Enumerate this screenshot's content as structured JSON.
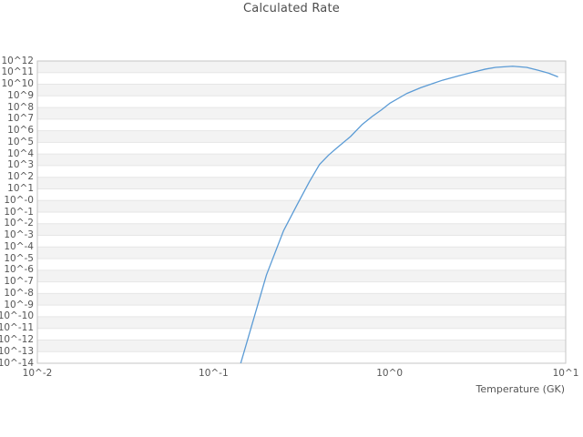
{
  "window": {
    "background": "#ffffff"
  },
  "chart_data": {
    "type": "line",
    "title": "Calculated Rate",
    "xlabel": "Temperature (GK)",
    "ylabel": "",
    "x_scale": "log10",
    "y_scale": "log10",
    "xlim_log10": [
      -2,
      1
    ],
    "ylim_log10": [
      -14,
      12
    ],
    "grid": "horizontal-bands-alternating",
    "legend": "none",
    "x_tick_labels": [
      "10^-2",
      "10^-1",
      "10^0",
      "10^1"
    ],
    "x_tick_log10": [
      -2,
      -1,
      0,
      1
    ],
    "y_tick_labels": [
      "10^12",
      "10^11",
      "10^10",
      "10^9",
      "10^8",
      "10^7",
      "10^6",
      "10^5",
      "10^4",
      "10^3",
      "10^2",
      "10^1",
      "10^-0",
      "10^-1",
      "10^-2",
      "10^-3",
      "10^-4",
      "10^-5",
      "10^-6",
      "10^-7",
      "10^-8",
      "10^-9",
      "10^-10",
      "10^-11",
      "10^-12",
      "10^-13",
      "10^-14"
    ],
    "y_tick_log10": [
      12,
      11,
      10,
      9,
      8,
      7,
      6,
      5,
      4,
      3,
      2,
      1,
      0,
      -1,
      -2,
      -3,
      -4,
      -5,
      -6,
      -7,
      -8,
      -9,
      -10,
      -11,
      -12,
      -13,
      -14
    ],
    "series": [
      {
        "name": "calculated-rate",
        "color": "#5b9bd5",
        "x_temperature_gk": [
          0.1,
          0.15,
          0.2,
          0.25,
          0.3,
          0.35,
          0.4,
          0.45,
          0.5,
          0.6,
          0.7,
          0.8,
          0.9,
          1.0,
          1.25,
          1.5,
          1.75,
          2.0,
          2.5,
          3.0,
          3.5,
          4.0,
          5.0,
          6.0,
          7.0,
          8.0,
          9.0
        ],
        "y_log10_rate": [
          -22.0,
          -12.9,
          -6.4,
          -2.6,
          -0.3,
          1.6,
          3.1,
          3.9,
          4.5,
          5.5,
          6.55,
          7.25,
          7.8,
          8.35,
          9.2,
          9.7,
          10.05,
          10.35,
          10.75,
          11.05,
          11.3,
          11.45,
          11.55,
          11.45,
          11.2,
          10.95,
          10.65
        ]
      }
    ]
  },
  "style": {
    "band_color": "#f3f3f3",
    "band_alt_color": "#ffffff",
    "grid_line_color": "#e6e6e6",
    "spine_color": "#c6c6c6",
    "tick_text_color": "#565656",
    "title_color": "#4d4d4d",
    "line_color": "#5b9bd5"
  }
}
